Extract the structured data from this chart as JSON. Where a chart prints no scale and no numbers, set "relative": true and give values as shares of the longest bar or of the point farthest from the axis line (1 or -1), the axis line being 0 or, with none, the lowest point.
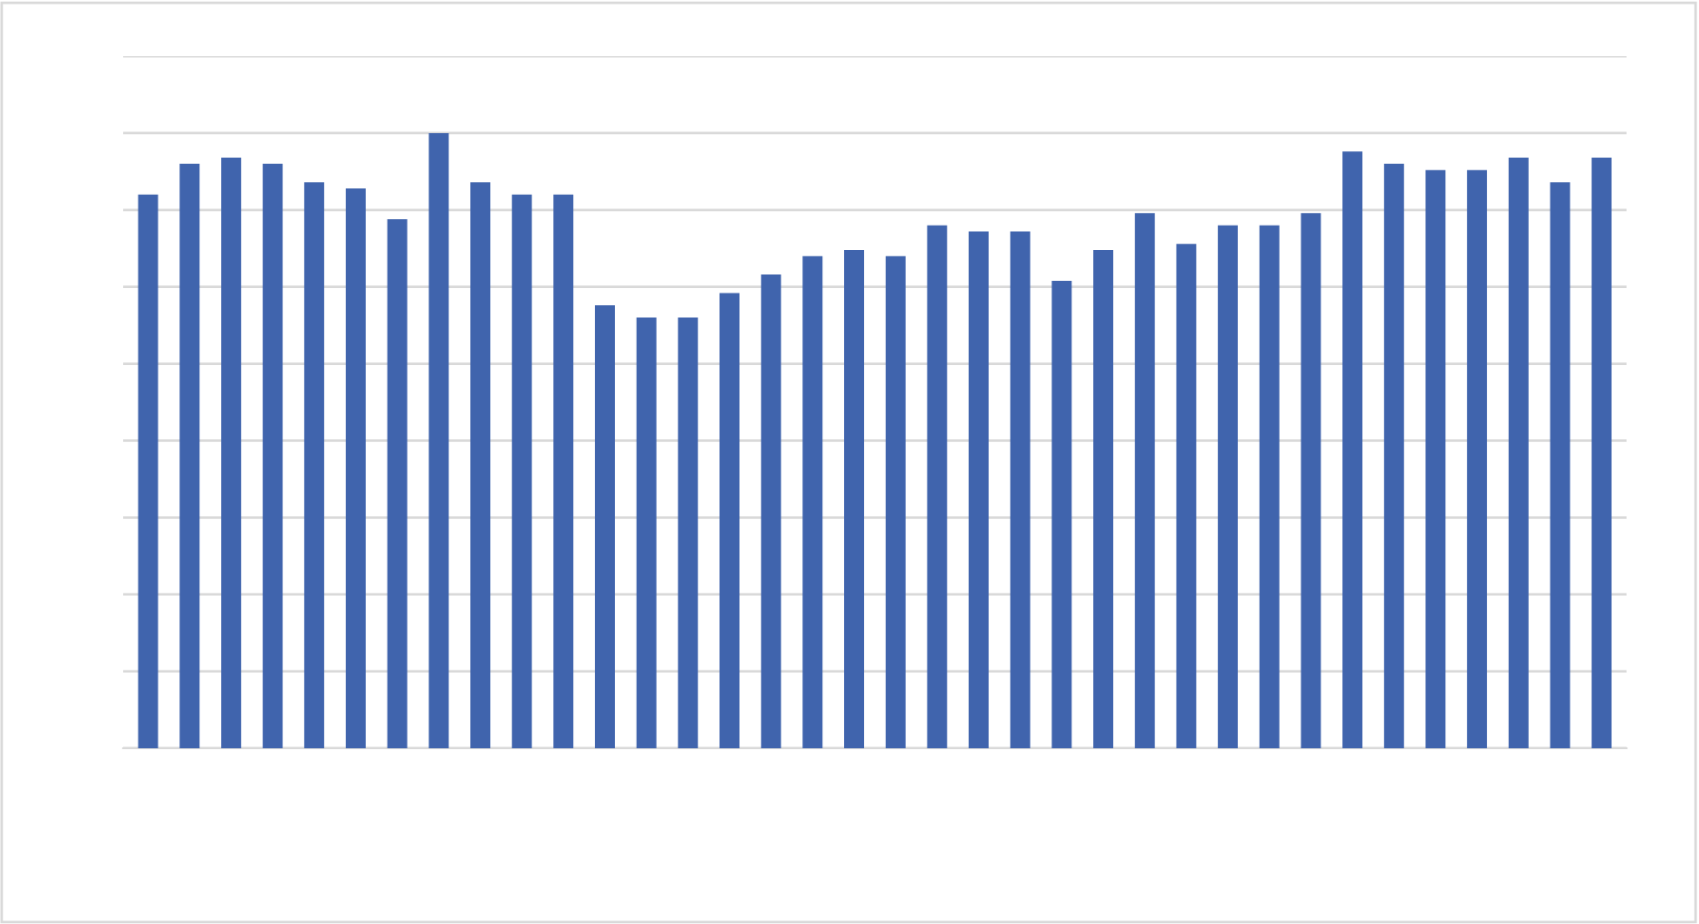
{
  "chart_data": {
    "type": "bar",
    "relative": true,
    "categories": [
      null,
      null,
      null,
      null,
      null,
      null,
      null,
      null,
      null,
      null,
      null,
      null,
      null,
      null,
      null,
      null,
      null,
      null,
      null,
      null,
      null,
      null,
      null,
      null,
      null,
      null,
      null,
      null,
      null,
      null,
      null,
      null,
      null,
      null,
      null,
      null
    ],
    "values": [
      0.9,
      0.95,
      0.96,
      0.95,
      0.92,
      0.91,
      0.86,
      1,
      0.92,
      0.9,
      0.9,
      0.72,
      0.7,
      0.7,
      0.74,
      0.77,
      0.8,
      0.81,
      0.8,
      0.85,
      0.84,
      0.84,
      0.76,
      0.81,
      0.87,
      0.82,
      0.85,
      0.85,
      0.87,
      0.97,
      0.95,
      0.94,
      0.94,
      0.96,
      0.92,
      0.96
    ],
    "color": "#4064ad",
    "grid": "y",
    "legend": false
  }
}
